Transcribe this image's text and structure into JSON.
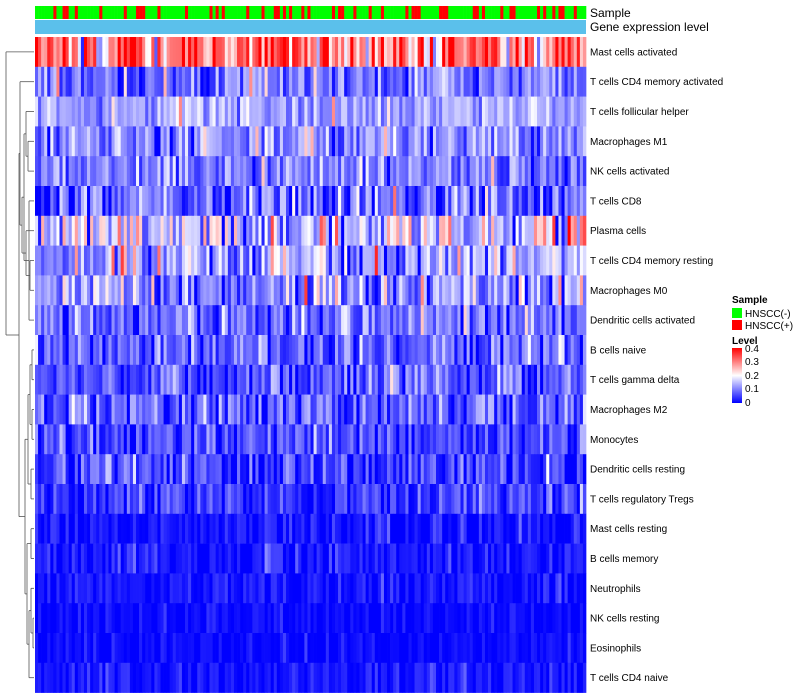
{
  "chart_data": {
    "type": "heatmap",
    "columns": 180,
    "rows": [
      {
        "name": "Mast cells activated",
        "mean": 0.3,
        "sd": 0.08
      },
      {
        "name": "T cells CD4 memory activated",
        "mean": 0.08,
        "sd": 0.05
      },
      {
        "name": "T cells follicular helper",
        "mean": 0.12,
        "sd": 0.04
      },
      {
        "name": "Macrophages M1",
        "mean": 0.1,
        "sd": 0.05
      },
      {
        "name": "NK cells activated",
        "mean": 0.09,
        "sd": 0.04
      },
      {
        "name": "T cells CD8",
        "mean": 0.07,
        "sd": 0.06
      },
      {
        "name": "Plasma cells",
        "mean": 0.13,
        "sd": 0.08
      },
      {
        "name": "T cells CD4 memory resting",
        "mean": 0.12,
        "sd": 0.07
      },
      {
        "name": "Macrophages M0",
        "mean": 0.1,
        "sd": 0.07
      },
      {
        "name": "Dendritic cells activated",
        "mean": 0.07,
        "sd": 0.05
      },
      {
        "name": "B cells naive",
        "mean": 0.06,
        "sd": 0.05
      },
      {
        "name": "T cells gamma delta",
        "mean": 0.06,
        "sd": 0.05
      },
      {
        "name": "Macrophages M2",
        "mean": 0.06,
        "sd": 0.05
      },
      {
        "name": "Monocytes",
        "mean": 0.05,
        "sd": 0.04
      },
      {
        "name": "Dendritic cells resting",
        "mean": 0.04,
        "sd": 0.04
      },
      {
        "name": "T cells regulatory  Tregs",
        "mean": 0.03,
        "sd": 0.03
      },
      {
        "name": "Mast cells resting",
        "mean": 0.01,
        "sd": 0.02
      },
      {
        "name": "B cells memory",
        "mean": 0.01,
        "sd": 0.02
      },
      {
        "name": "Neutrophils",
        "mean": 0.01,
        "sd": 0.015
      },
      {
        "name": "NK cells resting",
        "mean": 0.005,
        "sd": 0.01
      },
      {
        "name": "Eosinophils",
        "mean": 0.004,
        "sd": 0.01
      },
      {
        "name": "T cells CD4 naive",
        "mean": 0.01,
        "sd": 0.015
      }
    ],
    "annotations": [
      {
        "name": "Sample",
        "label": "Sample"
      },
      {
        "name": "Gene expression level",
        "label": "Gene expression level",
        "color": "#5BC0EB"
      }
    ],
    "legend": {
      "sample": {
        "title": "Sample",
        "entries": [
          {
            "label": "HNSCC(-)",
            "color": "#00FF00"
          },
          {
            "label": "HNSCC(+)",
            "color": "#FF0000"
          }
        ]
      },
      "level": {
        "title": "Level",
        "ticks": [
          "0.4",
          "0.3",
          "0.2",
          "0.1",
          "0"
        ],
        "range": [
          0,
          0.4
        ],
        "colors": [
          "#0000FF",
          "#FFFFFF",
          "#FF0000"
        ]
      }
    },
    "scale": {
      "min": 0,
      "mid": 0.2,
      "max": 0.4
    }
  }
}
